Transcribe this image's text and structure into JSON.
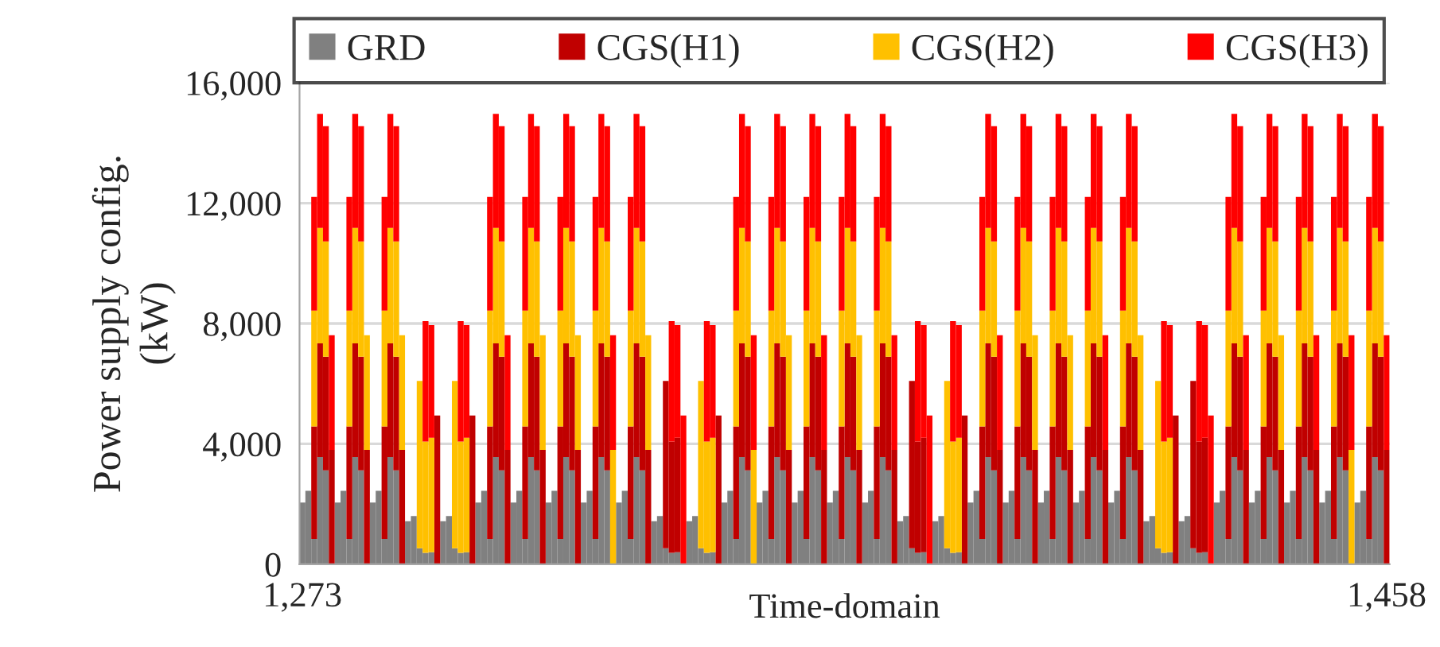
{
  "chart_data": {
    "type": "bar",
    "stacked": true,
    "xlabel": "Time-domain",
    "ylabel": "Power supply config.\n(kW)",
    "x": [
      1273,
      1274,
      1275,
      1276,
      1277,
      1278,
      1279,
      1280,
      1281,
      1282,
      1283,
      1284,
      1285,
      1286,
      1287,
      1288,
      1289,
      1290,
      1291,
      1292,
      1293,
      1294,
      1295,
      1296,
      1297,
      1298,
      1299,
      1300,
      1301,
      1302,
      1303,
      1304,
      1305,
      1306,
      1307,
      1308,
      1309,
      1310,
      1311,
      1312,
      1313,
      1314,
      1315,
      1316,
      1317,
      1318,
      1319,
      1320,
      1321,
      1322,
      1323,
      1324,
      1325,
      1326,
      1327,
      1328,
      1329,
      1330,
      1331,
      1332,
      1333,
      1334,
      1335,
      1336,
      1337,
      1338,
      1339,
      1340,
      1341,
      1342,
      1343,
      1344,
      1345,
      1346,
      1347,
      1348,
      1349,
      1350,
      1351,
      1352,
      1353,
      1354,
      1355,
      1356,
      1357,
      1358,
      1359,
      1360,
      1361,
      1362,
      1363,
      1364,
      1365,
      1366,
      1367,
      1368,
      1369,
      1370,
      1371,
      1372,
      1373,
      1374,
      1375,
      1376,
      1377,
      1378,
      1379,
      1380,
      1381,
      1382,
      1383,
      1384,
      1385,
      1386,
      1387,
      1388,
      1389,
      1390,
      1391,
      1392,
      1393,
      1394,
      1395,
      1396,
      1397,
      1398,
      1399,
      1400,
      1401,
      1402,
      1403,
      1404,
      1405,
      1406,
      1407,
      1408,
      1409,
      1410,
      1411,
      1412,
      1413,
      1414,
      1415,
      1416,
      1417,
      1418,
      1419,
      1420,
      1421,
      1422,
      1423,
      1424,
      1425,
      1426,
      1427,
      1428,
      1429,
      1430,
      1431,
      1432,
      1433,
      1434,
      1435,
      1436,
      1437,
      1438,
      1439,
      1440,
      1441,
      1442,
      1443,
      1444,
      1445,
      1446,
      1447,
      1448,
      1449,
      1450,
      1451,
      1452,
      1453,
      1454,
      1455,
      1456,
      1457,
      1458
    ],
    "xlim": [
      1272.5,
      1458.5
    ],
    "xticks": [
      {
        "value": 1273,
        "label": "1,273"
      },
      {
        "value": 1458,
        "label": "1,458"
      }
    ],
    "ylim": [
      0,
      16000
    ],
    "yticks": [
      {
        "value": 0,
        "label": "0"
      },
      {
        "value": 4000,
        "label": "4,000"
      },
      {
        "value": 8000,
        "label": "8,000"
      },
      {
        "value": 12000,
        "label": "12,000"
      },
      {
        "value": 16000,
        "label": "16,000"
      }
    ],
    "grid": "y",
    "legend": "top",
    "series": [
      {
        "name": "GRD",
        "color": "#808080",
        "values": [
          2050,
          2440,
          840,
          3560,
          3120,
          0,
          2050,
          2440,
          840,
          3560,
          3120,
          0,
          2050,
          2440,
          840,
          3560,
          3120,
          0,
          1430,
          1600,
          530,
          380,
          400,
          0,
          1430,
          1600,
          530,
          380,
          400,
          0,
          2050,
          2440,
          840,
          3560,
          3120,
          0,
          2050,
          2440,
          840,
          3560,
          3120,
          0,
          2050,
          2440,
          840,
          3560,
          3120,
          0,
          2050,
          2440,
          840,
          3560,
          3120,
          0,
          2050,
          2440,
          840,
          3560,
          3120,
          0,
          1430,
          1600,
          530,
          380,
          400,
          0,
          1430,
          1600,
          530,
          380,
          400,
          0,
          2050,
          2440,
          840,
          3560,
          3120,
          0,
          2050,
          2440,
          840,
          3560,
          3120,
          0,
          2050,
          2440,
          840,
          3560,
          3120,
          0,
          2050,
          2440,
          840,
          3560,
          3120,
          0,
          2050,
          2440,
          840,
          3560,
          3120,
          0,
          1430,
          1600,
          530,
          380,
          400,
          0,
          1430,
          1600,
          530,
          380,
          400,
          0,
          2050,
          2440,
          840,
          3560,
          3120,
          0,
          2050,
          2440,
          840,
          3560,
          3120,
          0,
          2050,
          2440,
          840,
          3560,
          3120,
          0,
          2050,
          2440,
          840,
          3560,
          3120,
          0,
          2050,
          2440,
          840,
          3560,
          3120,
          0,
          1430,
          1600,
          530,
          380,
          400,
          0,
          1430,
          1600,
          530,
          380,
          400,
          0,
          2050,
          2440,
          840,
          3560,
          3120,
          0,
          2050,
          2440,
          840,
          3560,
          3120,
          0,
          2050,
          2440,
          840,
          3560,
          3120,
          0,
          2050,
          2440,
          840,
          3560,
          3120,
          0,
          2050,
          2440,
          840,
          3560,
          3120,
          0
        ]
      },
      {
        "name": "CGS(H1)",
        "color": "#c00000",
        "values": [
          0,
          0,
          3740,
          3780,
          3780,
          3800,
          0,
          0,
          3740,
          3780,
          3780,
          3800,
          0,
          0,
          3740,
          3780,
          3780,
          3800,
          0,
          0,
          0,
          0,
          0,
          4940,
          0,
          0,
          0,
          0,
          0,
          4940,
          0,
          0,
          3740,
          3780,
          3780,
          3800,
          0,
          0,
          3740,
          3780,
          3780,
          3800,
          0,
          0,
          3740,
          3780,
          3780,
          3800,
          0,
          0,
          3740,
          3780,
          3780,
          0,
          0,
          0,
          3740,
          3780,
          3780,
          3800,
          0,
          0,
          5560,
          3700,
          3800,
          0,
          0,
          0,
          0,
          0,
          0,
          4940,
          0,
          0,
          3740,
          3780,
          3780,
          0,
          0,
          0,
          3740,
          3780,
          3780,
          3800,
          0,
          0,
          3740,
          3780,
          3780,
          3800,
          0,
          0,
          3740,
          3780,
          3780,
          3800,
          0,
          0,
          3740,
          3780,
          3780,
          3800,
          0,
          0,
          5560,
          3700,
          3800,
          0,
          0,
          0,
          0,
          0,
          0,
          4940,
          0,
          0,
          3740,
          3780,
          3780,
          3800,
          0,
          0,
          3740,
          3780,
          3780,
          3800,
          0,
          0,
          3740,
          3780,
          3780,
          3800,
          0,
          0,
          3740,
          3780,
          3780,
          3800,
          0,
          0,
          3740,
          3780,
          3780,
          3800,
          0,
          0,
          0,
          0,
          0,
          4940,
          0,
          0,
          5560,
          3700,
          3800,
          0,
          0,
          0,
          3740,
          3780,
          3780,
          3800,
          0,
          0,
          3740,
          3780,
          3780,
          3800,
          0,
          0,
          3740,
          3780,
          3780,
          3800,
          0,
          0,
          3740,
          3780,
          3780,
          0,
          0,
          0,
          3740,
          3780,
          3780,
          3800
        ]
      },
      {
        "name": "CGS(H2)",
        "color": "#ffc000",
        "values": [
          0,
          0,
          3850,
          3840,
          3830,
          0,
          0,
          0,
          3850,
          3840,
          3830,
          3810,
          0,
          0,
          3850,
          3840,
          3830,
          3810,
          0,
          0,
          5560,
          3700,
          3800,
          0,
          0,
          0,
          5560,
          3700,
          3800,
          0,
          0,
          0,
          3850,
          3840,
          3830,
          0,
          0,
          0,
          3850,
          3840,
          3830,
          3810,
          0,
          0,
          3850,
          3840,
          3830,
          3810,
          0,
          0,
          3850,
          3840,
          3830,
          3800,
          0,
          0,
          3850,
          3840,
          3830,
          3810,
          0,
          0,
          0,
          0,
          0,
          0,
          0,
          0,
          5560,
          3700,
          3800,
          0,
          0,
          0,
          3850,
          3840,
          3830,
          3800,
          0,
          0,
          3850,
          3840,
          3830,
          3810,
          0,
          0,
          3850,
          3840,
          3830,
          0,
          0,
          0,
          3850,
          3840,
          3830,
          3810,
          0,
          0,
          3850,
          3840,
          3830,
          0,
          0,
          0,
          0,
          0,
          0,
          0,
          0,
          0,
          5560,
          3700,
          3800,
          0,
          0,
          0,
          3850,
          3840,
          3830,
          0,
          0,
          0,
          3850,
          3840,
          3830,
          3810,
          0,
          0,
          3850,
          3840,
          3830,
          3810,
          0,
          0,
          3850,
          3840,
          3830,
          0,
          0,
          0,
          3850,
          3840,
          3830,
          3810,
          0,
          0,
          5560,
          3700,
          3800,
          0,
          0,
          0,
          0,
          0,
          0,
          0,
          0,
          0,
          3850,
          3840,
          3830,
          0,
          0,
          0,
          3850,
          3840,
          3830,
          3810,
          0,
          0,
          3850,
          3840,
          3830,
          0,
          0,
          0,
          3850,
          3840,
          3830,
          3800,
          0,
          0,
          3850,
          3840,
          3830,
          0
        ]
      },
      {
        "name": "CGS(H3)",
        "color": "#ff0000",
        "values": [
          0,
          0,
          3780,
          3790,
          3830,
          3810,
          0,
          0,
          3780,
          3790,
          3830,
          0,
          0,
          0,
          3780,
          3790,
          3830,
          0,
          0,
          0,
          0,
          4000,
          3750,
          0,
          0,
          0,
          0,
          4000,
          3750,
          0,
          0,
          0,
          3780,
          3790,
          3830,
          3810,
          0,
          0,
          3780,
          3790,
          3830,
          0,
          0,
          0,
          3780,
          3790,
          3830,
          0,
          0,
          0,
          3780,
          3790,
          3830,
          3810,
          0,
          0,
          3780,
          3790,
          3830,
          0,
          0,
          0,
          0,
          4000,
          3750,
          4940,
          0,
          0,
          0,
          4000,
          3750,
          0,
          0,
          0,
          3780,
          3790,
          3830,
          3810,
          0,
          0,
          3780,
          3790,
          3830,
          0,
          0,
          0,
          3780,
          3790,
          3830,
          3810,
          0,
          0,
          3780,
          3790,
          3830,
          0,
          0,
          0,
          3780,
          3790,
          3830,
          3810,
          0,
          0,
          0,
          4000,
          3750,
          4940,
          0,
          0,
          0,
          4000,
          3750,
          0,
          0,
          0,
          3780,
          3790,
          3830,
          3810,
          0,
          0,
          3780,
          3790,
          3830,
          0,
          0,
          0,
          3780,
          3790,
          3830,
          0,
          0,
          0,
          3780,
          3790,
          3830,
          3810,
          0,
          0,
          3780,
          3790,
          3830,
          0,
          0,
          0,
          0,
          4000,
          3750,
          0,
          0,
          0,
          0,
          4000,
          3750,
          4940,
          0,
          0,
          3780,
          3790,
          3830,
          3810,
          0,
          0,
          3780,
          3790,
          3830,
          0,
          0,
          0,
          3780,
          3790,
          3830,
          3810,
          0,
          0,
          3780,
          3790,
          3830,
          3810,
          0,
          0,
          3780,
          3790,
          3830,
          3810
        ]
      }
    ]
  }
}
